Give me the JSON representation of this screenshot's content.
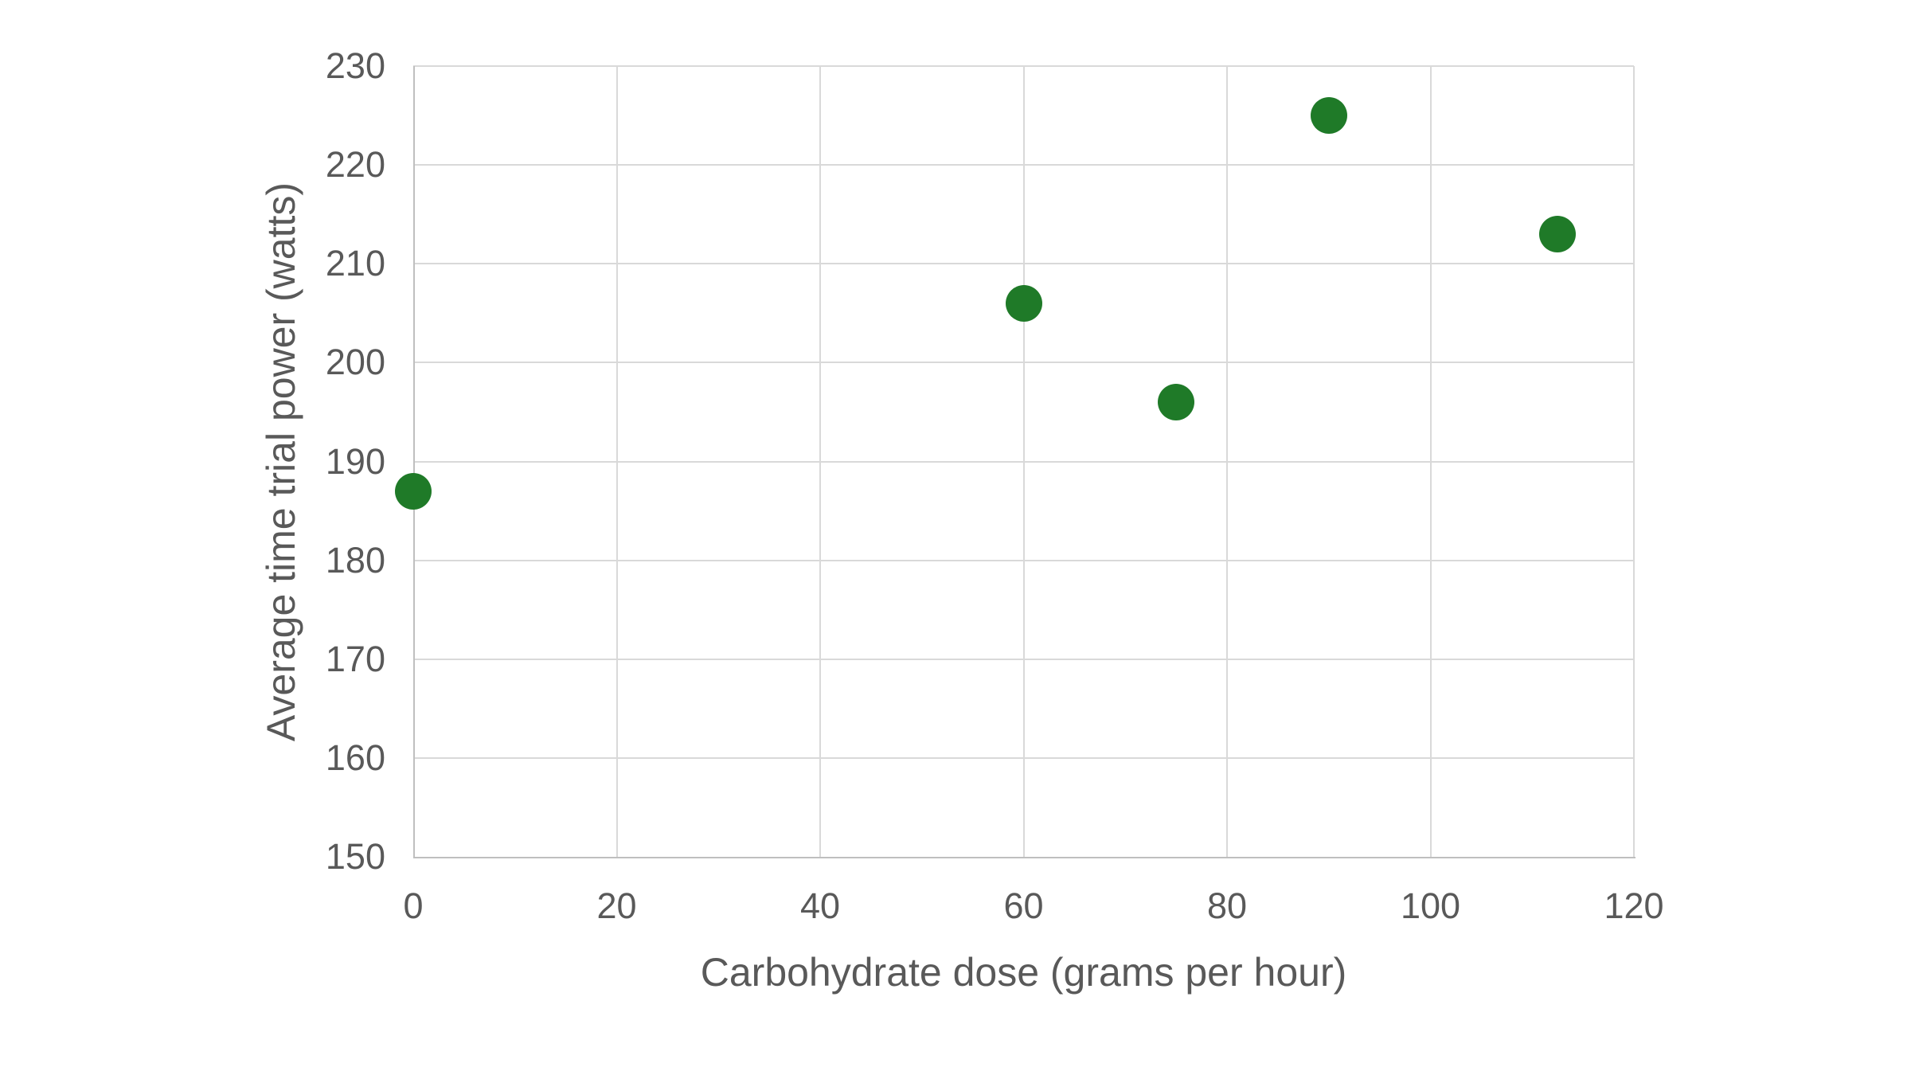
{
  "chart_data": {
    "type": "scatter",
    "title": "",
    "xlabel": "Carbohydrate dose (grams per hour)",
    "ylabel": "Average time trial power (watts)",
    "points": [
      {
        "x": 0,
        "y": 187
      },
      {
        "x": 60,
        "y": 206
      },
      {
        "x": 75,
        "y": 196
      },
      {
        "x": 90,
        "y": 225
      },
      {
        "x": 112.5,
        "y": 213
      }
    ],
    "xlim": [
      0,
      120
    ],
    "ylim": [
      150,
      230
    ],
    "x_tick_labels": [
      "0",
      "20",
      "40",
      "60",
      "80",
      "100",
      "120"
    ],
    "y_tick_labels": [
      "150",
      "160",
      "170",
      "180",
      "190",
      "200",
      "210",
      "220",
      "230"
    ],
    "grid": true,
    "legend_position": "none",
    "colors": {
      "point": "#1F7A28",
      "gridline": "#D9D9D9",
      "axis_line": "#BFBFBF",
      "text": "#595959",
      "background": "#FFFFFF"
    }
  }
}
